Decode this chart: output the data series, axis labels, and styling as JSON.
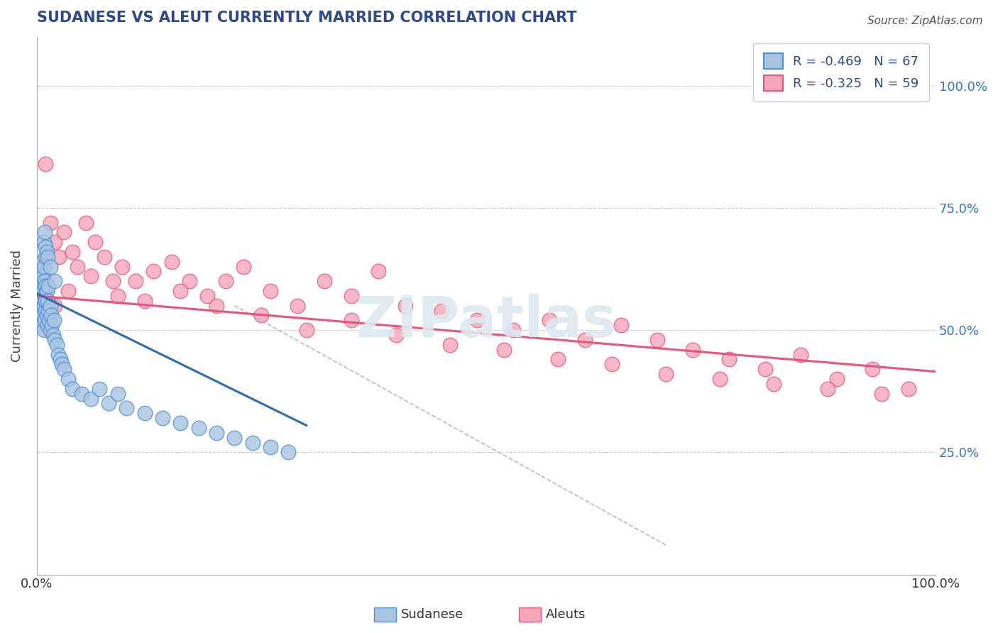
{
  "title": "SUDANESE VS ALEUT CURRENTLY MARRIED CORRELATION CHART",
  "source_text": "Source: ZipAtlas.com",
  "ylabel": "Currently Married",
  "watermark": "ZIPatlas",
  "xlim": [
    0.0,
    1.0
  ],
  "ylim": [
    0.0,
    1.1
  ],
  "x_ticks": [
    0.0,
    1.0
  ],
  "x_tick_labels": [
    "0.0%",
    "100.0%"
  ],
  "y_ticks": [
    0.25,
    0.5,
    0.75,
    1.0
  ],
  "y_tick_labels": [
    "25.0%",
    "50.0%",
    "75.0%",
    "100.0%"
  ],
  "R_sudanese": -0.469,
  "N_sudanese": 67,
  "R_aleuts": -0.325,
  "N_aleuts": 59,
  "sudanese_color": "#a8c4e0",
  "aleuts_color": "#f4a7b9",
  "sudanese_line_color": "#2b6cb8",
  "aleuts_line_color": "#e8547a",
  "sudanese_edge_color": "#4a90d9",
  "aleuts_edge_color": "#e8547a",
  "title_color": "#2e4a8e",
  "source_color": "#555555",
  "axis_label_color": "#444444",
  "tick_label_color_right": "#2e74d0",
  "tick_label_color_bottom": "#333333",
  "grid_color": "#cccccc",
  "legend_label1": "R = -0.469   N = 67",
  "legend_label2": "R = -0.325   N = 59",
  "bottom_legend_sudanese": "Sudanese",
  "bottom_legend_aleuts": "Aleuts",
  "sudanese_x": [
    0.002,
    0.003,
    0.003,
    0.004,
    0.004,
    0.005,
    0.005,
    0.005,
    0.006,
    0.006,
    0.006,
    0.007,
    0.007,
    0.007,
    0.008,
    0.008,
    0.008,
    0.009,
    0.009,
    0.009,
    0.01,
    0.01,
    0.01,
    0.01,
    0.011,
    0.011,
    0.012,
    0.012,
    0.013,
    0.013,
    0.014,
    0.015,
    0.015,
    0.016,
    0.017,
    0.018,
    0.019,
    0.02,
    0.022,
    0.024,
    0.026,
    0.028,
    0.03,
    0.035,
    0.04,
    0.05,
    0.06,
    0.07,
    0.08,
    0.09,
    0.1,
    0.12,
    0.14,
    0.16,
    0.18,
    0.2,
    0.22,
    0.24,
    0.26,
    0.28,
    0.008,
    0.009,
    0.01,
    0.011,
    0.012,
    0.015,
    0.02
  ],
  "sudanese_y": [
    0.55,
    0.58,
    0.52,
    0.56,
    0.6,
    0.54,
    0.57,
    0.62,
    0.51,
    0.59,
    0.64,
    0.53,
    0.58,
    0.61,
    0.5,
    0.55,
    0.63,
    0.52,
    0.57,
    0.6,
    0.54,
    0.56,
    0.59,
    0.65,
    0.53,
    0.58,
    0.51,
    0.56,
    0.54,
    0.59,
    0.52,
    0.5,
    0.55,
    0.53,
    0.51,
    0.49,
    0.52,
    0.48,
    0.47,
    0.45,
    0.44,
    0.43,
    0.42,
    0.4,
    0.38,
    0.37,
    0.36,
    0.38,
    0.35,
    0.37,
    0.34,
    0.33,
    0.32,
    0.31,
    0.3,
    0.29,
    0.28,
    0.27,
    0.26,
    0.25,
    0.68,
    0.7,
    0.67,
    0.66,
    0.65,
    0.63,
    0.6
  ],
  "aleuts_x": [
    0.01,
    0.015,
    0.02,
    0.025,
    0.03,
    0.04,
    0.045,
    0.055,
    0.065,
    0.075,
    0.085,
    0.095,
    0.11,
    0.13,
    0.15,
    0.17,
    0.19,
    0.21,
    0.23,
    0.26,
    0.29,
    0.32,
    0.35,
    0.38,
    0.41,
    0.45,
    0.49,
    0.53,
    0.57,
    0.61,
    0.65,
    0.69,
    0.73,
    0.77,
    0.81,
    0.85,
    0.89,
    0.93,
    0.97,
    0.02,
    0.035,
    0.06,
    0.09,
    0.12,
    0.16,
    0.2,
    0.25,
    0.3,
    0.35,
    0.4,
    0.46,
    0.52,
    0.58,
    0.64,
    0.7,
    0.76,
    0.82,
    0.88,
    0.94
  ],
  "aleuts_y": [
    0.84,
    0.72,
    0.68,
    0.65,
    0.7,
    0.66,
    0.63,
    0.72,
    0.68,
    0.65,
    0.6,
    0.63,
    0.6,
    0.62,
    0.64,
    0.6,
    0.57,
    0.6,
    0.63,
    0.58,
    0.55,
    0.6,
    0.57,
    0.62,
    0.55,
    0.54,
    0.52,
    0.5,
    0.52,
    0.48,
    0.51,
    0.48,
    0.46,
    0.44,
    0.42,
    0.45,
    0.4,
    0.42,
    0.38,
    0.55,
    0.58,
    0.61,
    0.57,
    0.56,
    0.58,
    0.55,
    0.53,
    0.5,
    0.52,
    0.49,
    0.47,
    0.46,
    0.44,
    0.43,
    0.41,
    0.4,
    0.39,
    0.38,
    0.37
  ],
  "blue_line_x": [
    0.0,
    0.3
  ],
  "blue_line_y": [
    0.575,
    0.305
  ],
  "pink_line_x": [
    0.0,
    1.0
  ],
  "pink_line_y": [
    0.57,
    0.415
  ],
  "dash_line_x": [
    0.22,
    0.7
  ],
  "dash_line_y": [
    0.55,
    0.06
  ]
}
